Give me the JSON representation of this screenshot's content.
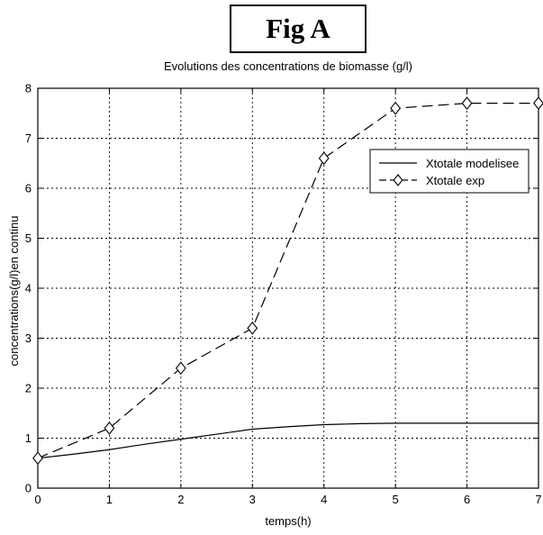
{
  "figure_label": "Fig A",
  "chart_data": {
    "type": "line",
    "title": "Evolutions des concentrations de biomasse (g/l)",
    "xlabel": "temps(h)",
    "ylabel": "concentrations(g/l)en continu",
    "xlim": [
      0,
      7
    ],
    "ylim": [
      0,
      8
    ],
    "xticks": [
      "0",
      "1",
      "2",
      "3",
      "4",
      "5",
      "6",
      "7"
    ],
    "yticks": [
      "0",
      "1",
      "2",
      "3",
      "4",
      "5",
      "6",
      "7",
      "8"
    ],
    "grid": true,
    "legend_position": "upper-right",
    "series": [
      {
        "name": "Xtotale modelisee",
        "style": "solid",
        "marker": "none",
        "color": "#000000",
        "x": [
          0,
          0.5,
          1,
          1.5,
          2,
          2.5,
          3,
          3.5,
          4,
          4.5,
          5,
          5.5,
          6,
          6.5,
          7
        ],
        "y": [
          0.6,
          0.68,
          0.77,
          0.88,
          0.98,
          1.08,
          1.18,
          1.23,
          1.27,
          1.29,
          1.3,
          1.3,
          1.3,
          1.3,
          1.3
        ]
      },
      {
        "name": "Xtotale exp",
        "style": "dashed",
        "marker": "diamond",
        "color": "#000000",
        "x": [
          0,
          1,
          2,
          3,
          4,
          5,
          6,
          7
        ],
        "y": [
          0.6,
          1.2,
          2.4,
          3.2,
          6.6,
          7.6,
          7.7,
          7.7
        ]
      }
    ]
  }
}
